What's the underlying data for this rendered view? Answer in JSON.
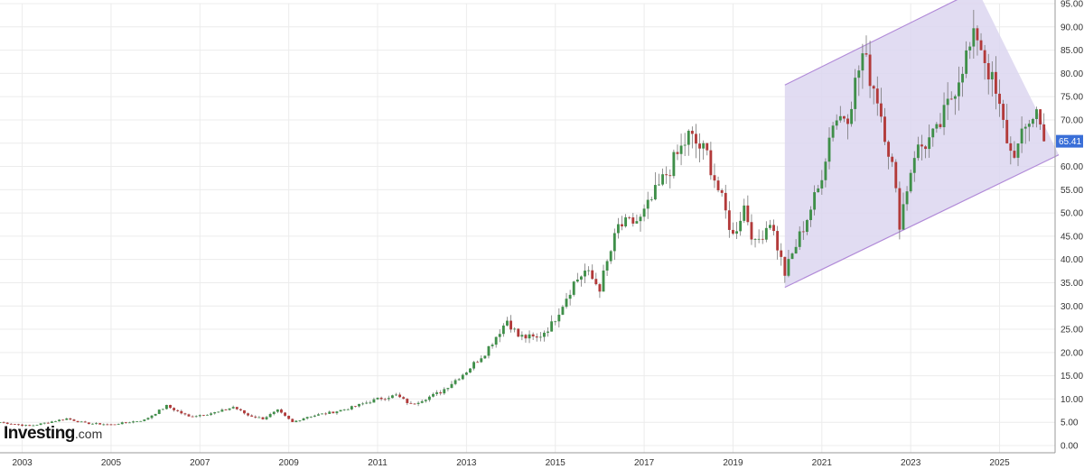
{
  "colors": {
    "up": "#3f8f49",
    "down": "#b23a3a",
    "wick": "#777777",
    "channel_fill": "#dcd6f0",
    "channel_line": "#b18ad8",
    "price_tag": "#3a6fd8",
    "grid": "#ececec"
  },
  "logo": {
    "name": "Investing",
    "suffix": ".com"
  },
  "chart_data": {
    "type": "candlestick",
    "interval": "monthly",
    "title": "",
    "xlabel": "",
    "ylabel": "",
    "ylim": [
      0,
      95
    ],
    "yticks": [
      "0.00",
      "5.00",
      "10.00",
      "15.00",
      "20.00",
      "25.00",
      "30.00",
      "35.00",
      "40.00",
      "45.00",
      "50.00",
      "55.00",
      "60.00",
      "65.00",
      "70.00",
      "75.00",
      "80.00",
      "85.00",
      "90.00",
      "95.00"
    ],
    "xticks": [
      "2003",
      "2005",
      "2007",
      "2009",
      "2011",
      "2013",
      "2015",
      "2017",
      "2019",
      "2021",
      "2023",
      "2025"
    ],
    "xlim": [
      "2002-07",
      "2026-04"
    ],
    "grid": true,
    "last_price": "65.41",
    "trend_channel": {
      "upper": [
        [
          "2020-03",
          77.5
        ],
        [
          "2024-07",
          98
        ]
      ],
      "lower": [
        [
          "2020-03",
          34
        ],
        [
          "2026-05",
          62.5
        ]
      ]
    },
    "price_anchors": [
      [
        "2002-07",
        5.0
      ],
      [
        "2003-03",
        4.2
      ],
      [
        "2004-01",
        5.8
      ],
      [
        "2004-06",
        4.8
      ],
      [
        "2005-01",
        4.5
      ],
      [
        "2005-10",
        5.5
      ],
      [
        "2006-04",
        8.5
      ],
      [
        "2006-10",
        6.2
      ],
      [
        "2007-06",
        7.2
      ],
      [
        "2007-10",
        8.3
      ],
      [
        "2008-02",
        6.5
      ],
      [
        "2008-06",
        5.8
      ],
      [
        "2008-10",
        7.5
      ],
      [
        "2009-02",
        5.0
      ],
      [
        "2009-06",
        6.2
      ],
      [
        "2010-01",
        7.2
      ],
      [
        "2010-06",
        8.2
      ],
      [
        "2011-01",
        10.0
      ],
      [
        "2011-06",
        10.8
      ],
      [
        "2011-10",
        8.8
      ],
      [
        "2012-06",
        11.5
      ],
      [
        "2013-01",
        16.0
      ],
      [
        "2013-06",
        20.0
      ],
      [
        "2013-12",
        27.0
      ],
      [
        "2014-03",
        23.5
      ],
      [
        "2014-08",
        23.0
      ],
      [
        "2014-12",
        26.0
      ],
      [
        "2015-06",
        35.0
      ],
      [
        "2015-09",
        37.5
      ],
      [
        "2016-01",
        34.0
      ],
      [
        "2016-06",
        47.0
      ],
      [
        "2016-12",
        48.5
      ],
      [
        "2017-06",
        57.0
      ],
      [
        "2018-01",
        66.5
      ],
      [
        "2018-06",
        62.5
      ],
      [
        "2018-10",
        52.5
      ],
      [
        "2019-01",
        45.0
      ],
      [
        "2019-04",
        51.5
      ],
      [
        "2019-07",
        43.0
      ],
      [
        "2019-11",
        48.5
      ],
      [
        "2020-03",
        37.0
      ],
      [
        "2020-08",
        47.0
      ],
      [
        "2020-12",
        55.0
      ],
      [
        "2021-04",
        70.0
      ],
      [
        "2021-08",
        71.5
      ],
      [
        "2021-12",
        84.0
      ],
      [
        "2022-04",
        75.0
      ],
      [
        "2022-08",
        60.0
      ],
      [
        "2022-10",
        48.0
      ],
      [
        "2023-02",
        63.0
      ],
      [
        "2023-08",
        67.0
      ],
      [
        "2023-12",
        75.0
      ],
      [
        "2024-03",
        82.0
      ],
      [
        "2024-07",
        88.5
      ],
      [
        "2024-11",
        78.0
      ],
      [
        "2025-04",
        63.0
      ],
      [
        "2025-06",
        64.0
      ],
      [
        "2025-09",
        70.0
      ],
      [
        "2025-11",
        72.0
      ],
      [
        "2026-01",
        65.41
      ]
    ]
  }
}
